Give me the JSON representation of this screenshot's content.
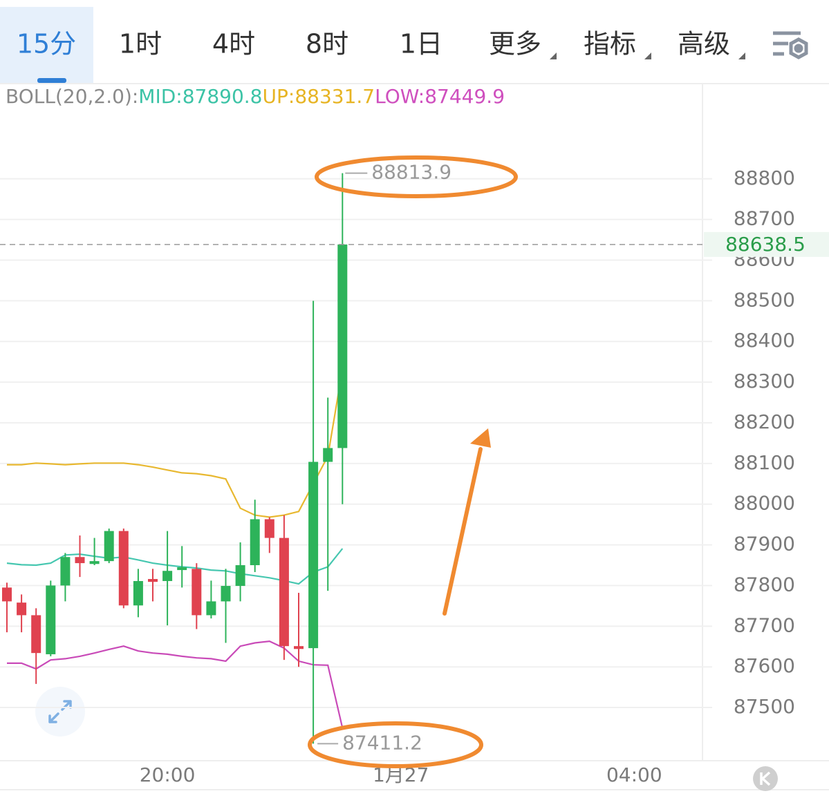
{
  "tabs": [
    "15分",
    "1时",
    "4时",
    "8时",
    "1日",
    "更多",
    "指标",
    "高级"
  ],
  "chart_data": {
    "type": "candlestick",
    "indicator": [
      {
        "text": "BOLL(20,2.0):",
        "color": "#8a8a8a"
      },
      {
        "text": "MID:87890.8",
        "color": "#3cc3a6"
      },
      {
        "text": "UP:88331.7",
        "color": "#e7b423"
      },
      {
        "text": "LOW:87449.9",
        "color": "#cf4fbe"
      }
    ],
    "categories": [
      null,
      null,
      null,
      null,
      null,
      null,
      null,
      null,
      null,
      null,
      null,
      "20:00",
      null,
      null,
      null,
      null,
      null,
      null,
      null,
      null,
      null,
      null,
      null,
      null,
      null,
      null,
      null,
      "1月27",
      null,
      null,
      null,
      null,
      null,
      null,
      null,
      null,
      null,
      null,
      null,
      null,
      null,
      null,
      null,
      "04:00",
      null,
      null,
      null,
      null
    ],
    "open": [
      87795,
      87758,
      87727,
      87631,
      87800,
      87870,
      87853,
      87860,
      87934,
      87751,
      87816,
      87811,
      87838,
      87841,
      87727,
      87761,
      87799,
      87850,
      87963,
      87917,
      87651,
      87646,
      88104,
      88138,
      null,
      null,
      null,
      null,
      null,
      null,
      null,
      null,
      null,
      null,
      null,
      null,
      null,
      null,
      null,
      null,
      null,
      null,
      null,
      null,
      null,
      null,
      null,
      null
    ],
    "high": [
      87807,
      87778,
      87744,
      87812,
      87880,
      87923,
      87917,
      87940,
      87940,
      87841,
      87841,
      87934,
      87897,
      87855,
      87812,
      87841,
      87906,
      88011,
      87968,
      87973,
      87782,
      88500,
      88262,
      88813.9,
      null,
      null,
      null,
      null,
      null,
      null,
      null,
      null,
      null,
      null,
      null,
      null,
      null,
      null,
      null,
      null,
      null,
      null,
      null,
      null,
      null,
      null,
      null,
      null
    ],
    "low": [
      87685,
      87685,
      87558,
      87626,
      87761,
      87821,
      87850,
      87855,
      87744,
      87722,
      87761,
      87702,
      87795,
      87693,
      87719,
      87659,
      87761,
      87833,
      87880,
      87617,
      87600,
      87411.2,
      87787,
      88000,
      null,
      null,
      null,
      null,
      null,
      null,
      null,
      null,
      null,
      null,
      null,
      null,
      null,
      null,
      null,
      null,
      null,
      null,
      null,
      null,
      null,
      null,
      null,
      null
    ],
    "close": [
      87761,
      87727,
      87634,
      87800,
      87870,
      87855,
      87860,
      87934,
      87751,
      87811,
      87809,
      87836,
      87845,
      87727,
      87761,
      87799,
      87850,
      87963,
      87917,
      87651,
      87644,
      88104,
      88138,
      88638.5,
      null,
      null,
      null,
      null,
      null,
      null,
      null,
      null,
      null,
      null,
      null,
      null,
      null,
      null,
      null,
      null,
      null,
      null,
      null,
      null,
      null,
      null,
      null,
      null
    ],
    "up_color": "#2db35a",
    "down_color": "#e0424f",
    "bands": [
      {
        "color": "#e8b830",
        "values": [
          88097,
          88097,
          88101,
          88099,
          88097,
          88099,
          88101,
          88101,
          88101,
          88097,
          88091,
          88084,
          88077,
          88075,
          88070,
          88062,
          87990,
          87973,
          87968,
          87973,
          87982,
          88050,
          88118,
          88331.7,
          null,
          null,
          null,
          null,
          null,
          null,
          null,
          null,
          null,
          null,
          null,
          null,
          null,
          null,
          null,
          null,
          null,
          null,
          null,
          null,
          null,
          null,
          null,
          null
        ]
      },
      {
        "color": "#46c7b0",
        "values": [
          87855,
          87851,
          87850,
          87855,
          87875,
          87877,
          87872,
          87867,
          87870,
          87863,
          87855,
          87850,
          87846,
          87843,
          87838,
          87836,
          87829,
          87824,
          87819,
          87812,
          87804,
          87833,
          87846,
          87890.8,
          null,
          null,
          null,
          null,
          null,
          null,
          null,
          null,
          null,
          null,
          null,
          null,
          null,
          null,
          null,
          null,
          null,
          null,
          null,
          null,
          null,
          null,
          null,
          null
        ]
      },
      {
        "color": "#c94ab8",
        "values": [
          87609,
          87609,
          87595,
          87617,
          87620,
          87626,
          87634,
          87643,
          87651,
          87639,
          87634,
          87631,
          87626,
          87622,
          87620,
          87614,
          87651,
          87659,
          87663,
          87646,
          87614,
          87605,
          87604,
          87449.9,
          null,
          null,
          null,
          null,
          null,
          null,
          null,
          null,
          null,
          null,
          null,
          null,
          null,
          null,
          null,
          null,
          null,
          null,
          null,
          null,
          null,
          null,
          null,
          null
        ]
      }
    ],
    "ylim": [
      87371,
      89034
    ],
    "yticks": [
      87500,
      87600,
      87700,
      87800,
      87900,
      88000,
      88100,
      88200,
      88300,
      88400,
      88500,
      88600,
      88700,
      88800
    ],
    "grid": true,
    "last_price_color": "#2a9d4a"
  }
}
